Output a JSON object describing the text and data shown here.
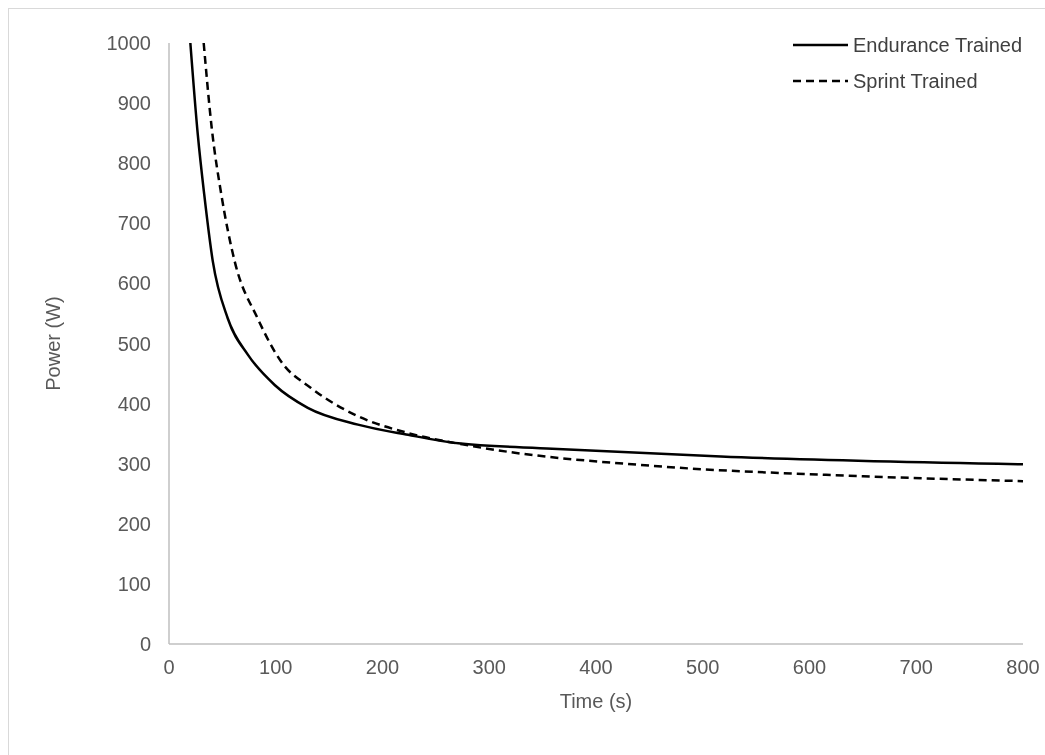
{
  "chart_data": {
    "type": "line",
    "xlabel": "Time (s)",
    "ylabel": "Power (W)",
    "xlim": [
      0,
      800
    ],
    "xticks": [
      0,
      100,
      200,
      300,
      400,
      500,
      600,
      700,
      800
    ],
    "ylim": [
      0,
      1000
    ],
    "yticks": [
      0,
      100,
      200,
      300,
      400,
      500,
      600,
      700,
      800,
      900,
      1000
    ],
    "grid": false,
    "legend": "top right",
    "marker": "none",
    "series": [
      {
        "name": "Endurance Trained",
        "color": "#000000",
        "line_style": "solid",
        "x": [
          20,
          27,
          33,
          41,
          55,
          74,
          99,
          130,
          177,
          224,
          271,
          359,
          517,
          800
        ],
        "values": [
          1000,
          847,
          748,
          637,
          542,
          481,
          431,
          393,
          365,
          348,
          334,
          325,
          312,
          299
        ]
      },
      {
        "name": "Sprint Trained",
        "color": "#000000",
        "line_style": "dashed",
        "x": [
          32.5,
          40,
          49,
          61.5,
          83,
          105,
          133,
          177,
          224,
          285,
          464,
          622,
          800
        ],
        "values": [
          1000,
          859,
          748,
          637,
          542,
          470,
          426,
          379,
          351,
          329,
          295,
          281,
          271
        ]
      }
    ]
  }
}
